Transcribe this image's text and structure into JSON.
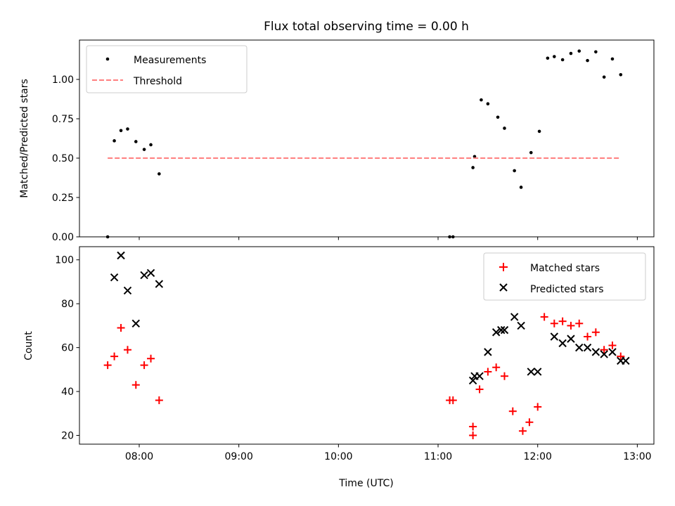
{
  "figure": {
    "title": "Flux total observing time = 0.00 h"
  },
  "chart_data": [
    {
      "type": "scatter",
      "ylabel": "Matched/Predicted stars",
      "xlabel": "",
      "xlim": [
        "07:24",
        "13:10"
      ],
      "ylim": [
        0,
        1.25
      ],
      "yticks": [
        0.0,
        0.25,
        0.5,
        0.75,
        1.0
      ],
      "ytick_labels": [
        "0.00",
        "0.25",
        "0.50",
        "0.75",
        "1.00"
      ],
      "xticks": [
        "08:00",
        "09:00",
        "10:00",
        "11:00",
        "12:00",
        "13:00"
      ],
      "show_x_tick_labels": false,
      "grid": false,
      "legend": "upper left",
      "series": [
        {
          "name": "Measurements",
          "kind": "points",
          "color": "#000000",
          "x": [
            "07:41",
            "07:45",
            "07:49",
            "07:53",
            "07:58",
            "08:03",
            "08:07",
            "08:12",
            "11:07",
            "11:09",
            "11:21",
            "11:22",
            "11:26",
            "11:30",
            "11:36",
            "11:40",
            "11:46",
            "11:50",
            "11:56",
            "12:01",
            "12:06",
            "12:10",
            "12:15",
            "12:20",
            "12:25",
            "12:30",
            "12:35",
            "12:40",
            "12:45",
            "12:50"
          ],
          "y": [
            0.0,
            0.61,
            0.675,
            0.685,
            0.605,
            0.555,
            0.585,
            0.4,
            0.0,
            0.0,
            0.44,
            0.51,
            0.87,
            0.845,
            0.76,
            0.69,
            0.42,
            0.315,
            0.535,
            0.67,
            1.135,
            1.145,
            1.125,
            1.165,
            1.18,
            1.12,
            1.175,
            1.015,
            1.13,
            1.03
          ]
        },
        {
          "name": "Threshold",
          "kind": "dashed-line",
          "color": "#ff7f7f",
          "x": [
            "07:41",
            "12:50"
          ],
          "y": [
            0.5,
            0.5
          ]
        }
      ]
    },
    {
      "type": "scatter",
      "ylabel": "Count",
      "xlabel": "Time (UTC)",
      "xlim": [
        "07:24",
        "13:10"
      ],
      "ylim": [
        16,
        106
      ],
      "yticks": [
        20,
        40,
        60,
        80,
        100
      ],
      "ytick_labels": [
        "20",
        "40",
        "60",
        "80",
        "100"
      ],
      "xticks": [
        "08:00",
        "09:00",
        "10:00",
        "11:00",
        "12:00",
        "13:00"
      ],
      "xtick_labels": [
        "08:00",
        "09:00",
        "10:00",
        "11:00",
        "12:00",
        "13:00"
      ],
      "grid": false,
      "legend": "upper right",
      "series": [
        {
          "name": "Matched stars",
          "marker": "plus",
          "color": "#ff0000",
          "x": [
            "07:41",
            "07:45",
            "07:49",
            "07:53",
            "07:58",
            "08:03",
            "08:07",
            "08:12",
            "11:07",
            "11:09",
            "11:21",
            "11:21",
            "11:25",
            "11:30",
            "11:35",
            "11:40",
            "11:45",
            "11:51",
            "11:55",
            "12:00",
            "12:04",
            "12:10",
            "12:15",
            "12:20",
            "12:25",
            "12:30",
            "12:35",
            "12:40",
            "12:45",
            "12:50"
          ],
          "y": [
            52,
            56,
            69,
            59,
            43,
            52,
            55,
            36,
            36,
            36,
            24,
            20,
            41,
            49,
            51,
            47,
            31,
            22,
            26,
            33,
            74,
            71,
            72,
            70,
            71,
            65,
            67,
            59,
            61,
            56
          ]
        },
        {
          "name": "Predicted stars",
          "marker": "x",
          "color": "#000000",
          "x": [
            "07:45",
            "07:49",
            "07:53",
            "07:58",
            "08:03",
            "08:07",
            "08:12",
            "11:21",
            "11:22",
            "11:25",
            "11:30",
            "11:35",
            "11:38",
            "11:40",
            "11:46",
            "11:50",
            "11:56",
            "12:00",
            "12:10",
            "12:15",
            "12:20",
            "12:25",
            "12:30",
            "12:35",
            "12:40",
            "12:45",
            "12:50",
            "12:53"
          ],
          "y": [
            92,
            102,
            86,
            71,
            93,
            94,
            89,
            45,
            47,
            47,
            58,
            67,
            68,
            68,
            74,
            70,
            49,
            49,
            65,
            62,
            64,
            60,
            60,
            58,
            57,
            58,
            54,
            54
          ]
        }
      ]
    }
  ]
}
